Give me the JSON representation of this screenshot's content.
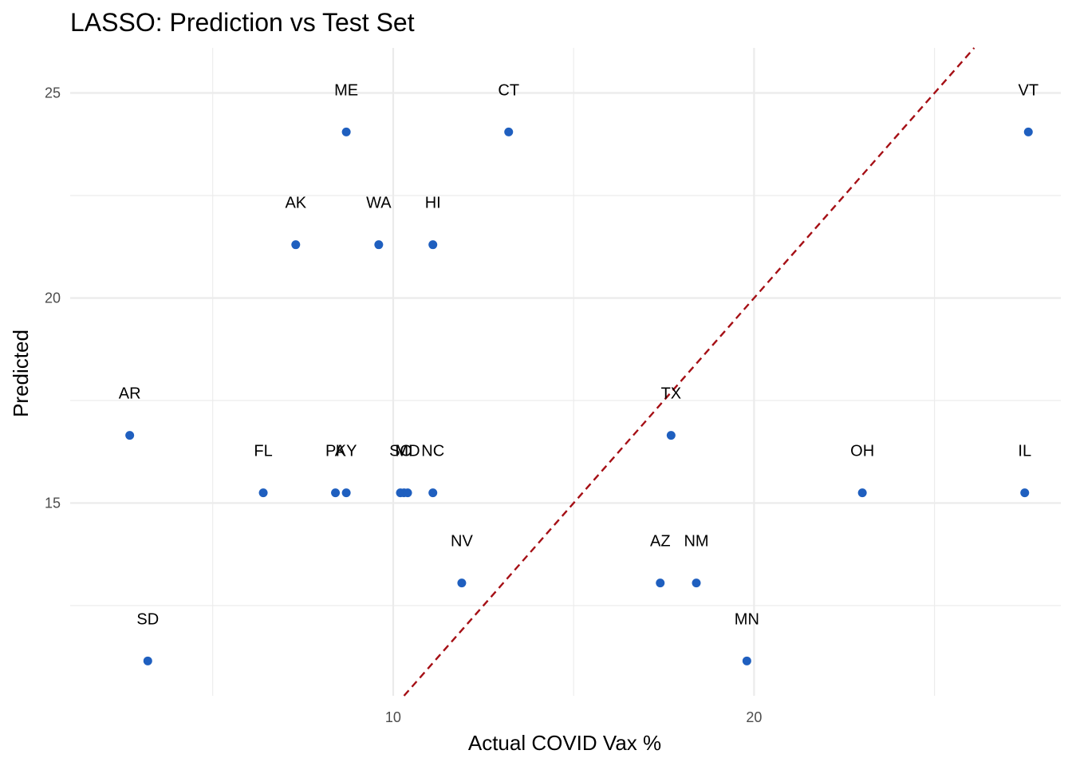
{
  "chart_data": {
    "type": "scatter",
    "title": "LASSO: Prediction vs Test Set",
    "xlabel": "Actual COVID Vax %",
    "ylabel": "Predicted",
    "xlim": [
      1.05,
      28.5
    ],
    "ylim": [
      10.3,
      26.1
    ],
    "x_ticks": [
      10,
      20
    ],
    "y_ticks": [
      15,
      20,
      25
    ],
    "grid": true,
    "legend": "none",
    "point_color": "#1f5fbf",
    "reference_line": {
      "type": "y = x",
      "style": "dashed",
      "color": "#a50f15"
    },
    "points": [
      {
        "label": "ME",
        "x": 8.7,
        "y": 24.05
      },
      {
        "label": "CT",
        "x": 13.2,
        "y": 24.05
      },
      {
        "label": "VT",
        "x": 27.6,
        "y": 24.05
      },
      {
        "label": "AK",
        "x": 7.3,
        "y": 21.3
      },
      {
        "label": "WA",
        "x": 9.6,
        "y": 21.3
      },
      {
        "label": "HI",
        "x": 11.1,
        "y": 21.3
      },
      {
        "label": "AR",
        "x": 2.7,
        "y": 16.65
      },
      {
        "label": "TX",
        "x": 17.7,
        "y": 16.65
      },
      {
        "label": "FL",
        "x": 6.4,
        "y": 15.25
      },
      {
        "label": "PA",
        "x": 8.4,
        "y": 15.25
      },
      {
        "label": "KY",
        "x": 8.7,
        "y": 15.25
      },
      {
        "label": "SC",
        "x": 10.2,
        "y": 15.25
      },
      {
        "label": "MI",
        "x": 10.3,
        "y": 15.25
      },
      {
        "label": "MD",
        "x": 10.4,
        "y": 15.25
      },
      {
        "label": "NC",
        "x": 11.1,
        "y": 15.25
      },
      {
        "label": "OH",
        "x": 23.0,
        "y": 15.25
      },
      {
        "label": "IL",
        "x": 27.5,
        "y": 15.25
      },
      {
        "label": "NV",
        "x": 11.9,
        "y": 13.05
      },
      {
        "label": "AZ",
        "x": 17.4,
        "y": 13.05
      },
      {
        "label": "NM",
        "x": 18.4,
        "y": 13.05
      },
      {
        "label": "SD",
        "x": 3.2,
        "y": 11.15
      },
      {
        "label": "MN",
        "x": 19.8,
        "y": 11.15
      }
    ]
  }
}
